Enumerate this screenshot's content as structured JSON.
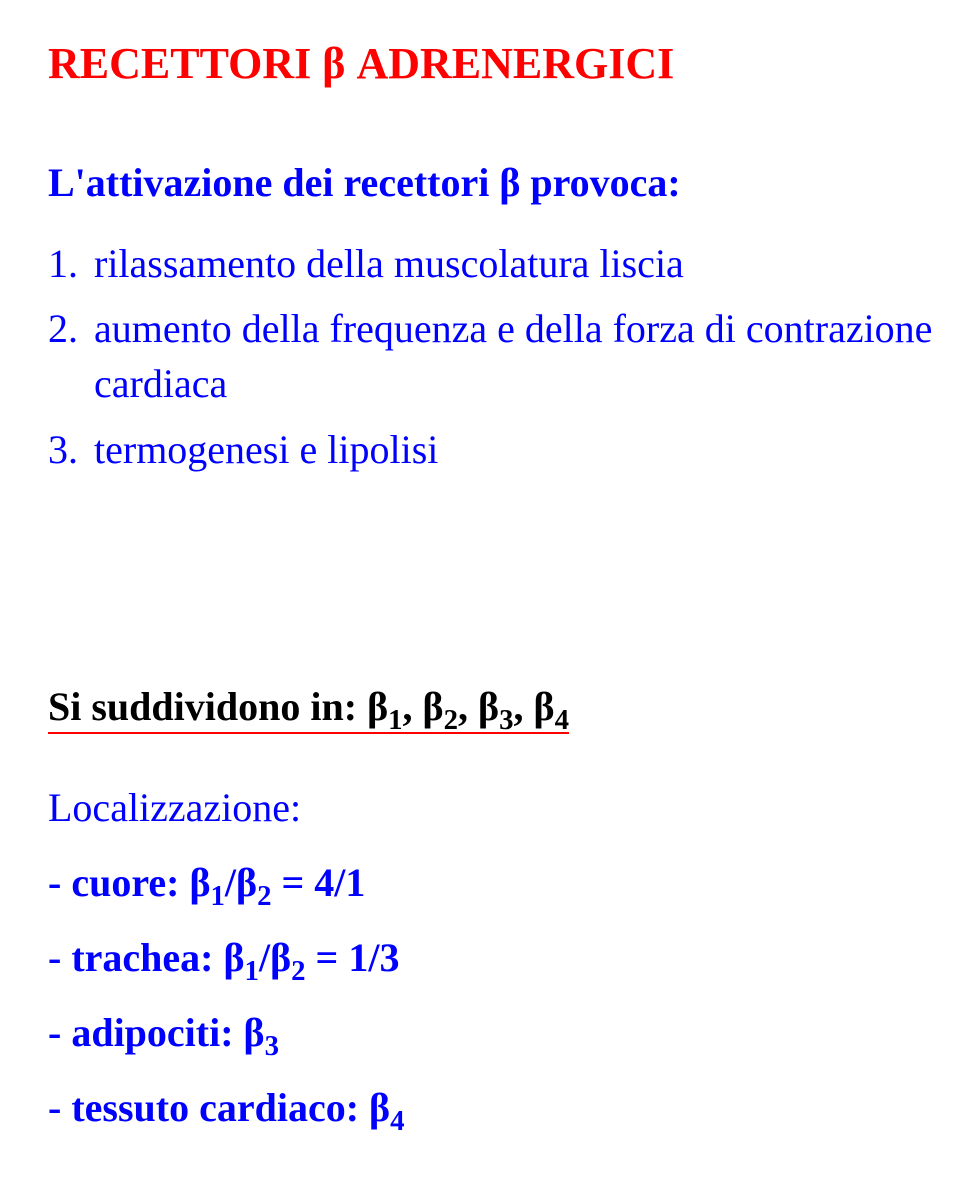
{
  "colors": {
    "title": "#ff0000",
    "body": "#0000ff",
    "black": "#000000",
    "underline": "#ff0000"
  },
  "fonts": {
    "title_size": "44px",
    "body_size": "40px",
    "weight_bold": "bold"
  },
  "title": "RECETTORI β ADRENERGICI",
  "intro": "L'attivazione dei recettori β provoca:",
  "items": [
    {
      "n": "1.",
      "text": "rilassamento della muscolatura liscia"
    },
    {
      "n": "2.",
      "text": "aumento della frequenza e della forza di contrazione cardiaca"
    },
    {
      "n": "3.",
      "text": "termogenesi e lipolisi"
    }
  ],
  "subdiv_prefix": "Si suddividono in: ",
  "subdiv_betas": [
    "β",
    "1",
    ", β",
    "2",
    ", β",
    "3",
    ", β",
    "4"
  ],
  "loc_title": "Localizzazione:",
  "loc": [
    {
      "label": "- cuore: ",
      "expr": [
        "β",
        "1",
        "/β",
        "2",
        " = 4/1"
      ]
    },
    {
      "label": "- trachea: ",
      "expr": [
        "β",
        "1",
        "/β",
        "2",
        " = 1/3"
      ]
    },
    {
      "label": "- adipociti: ",
      "expr": [
        "β",
        "3",
        ""
      ]
    },
    {
      "label": "- tessuto cardiaco: ",
      "expr": [
        "β",
        "4",
        ""
      ]
    }
  ]
}
